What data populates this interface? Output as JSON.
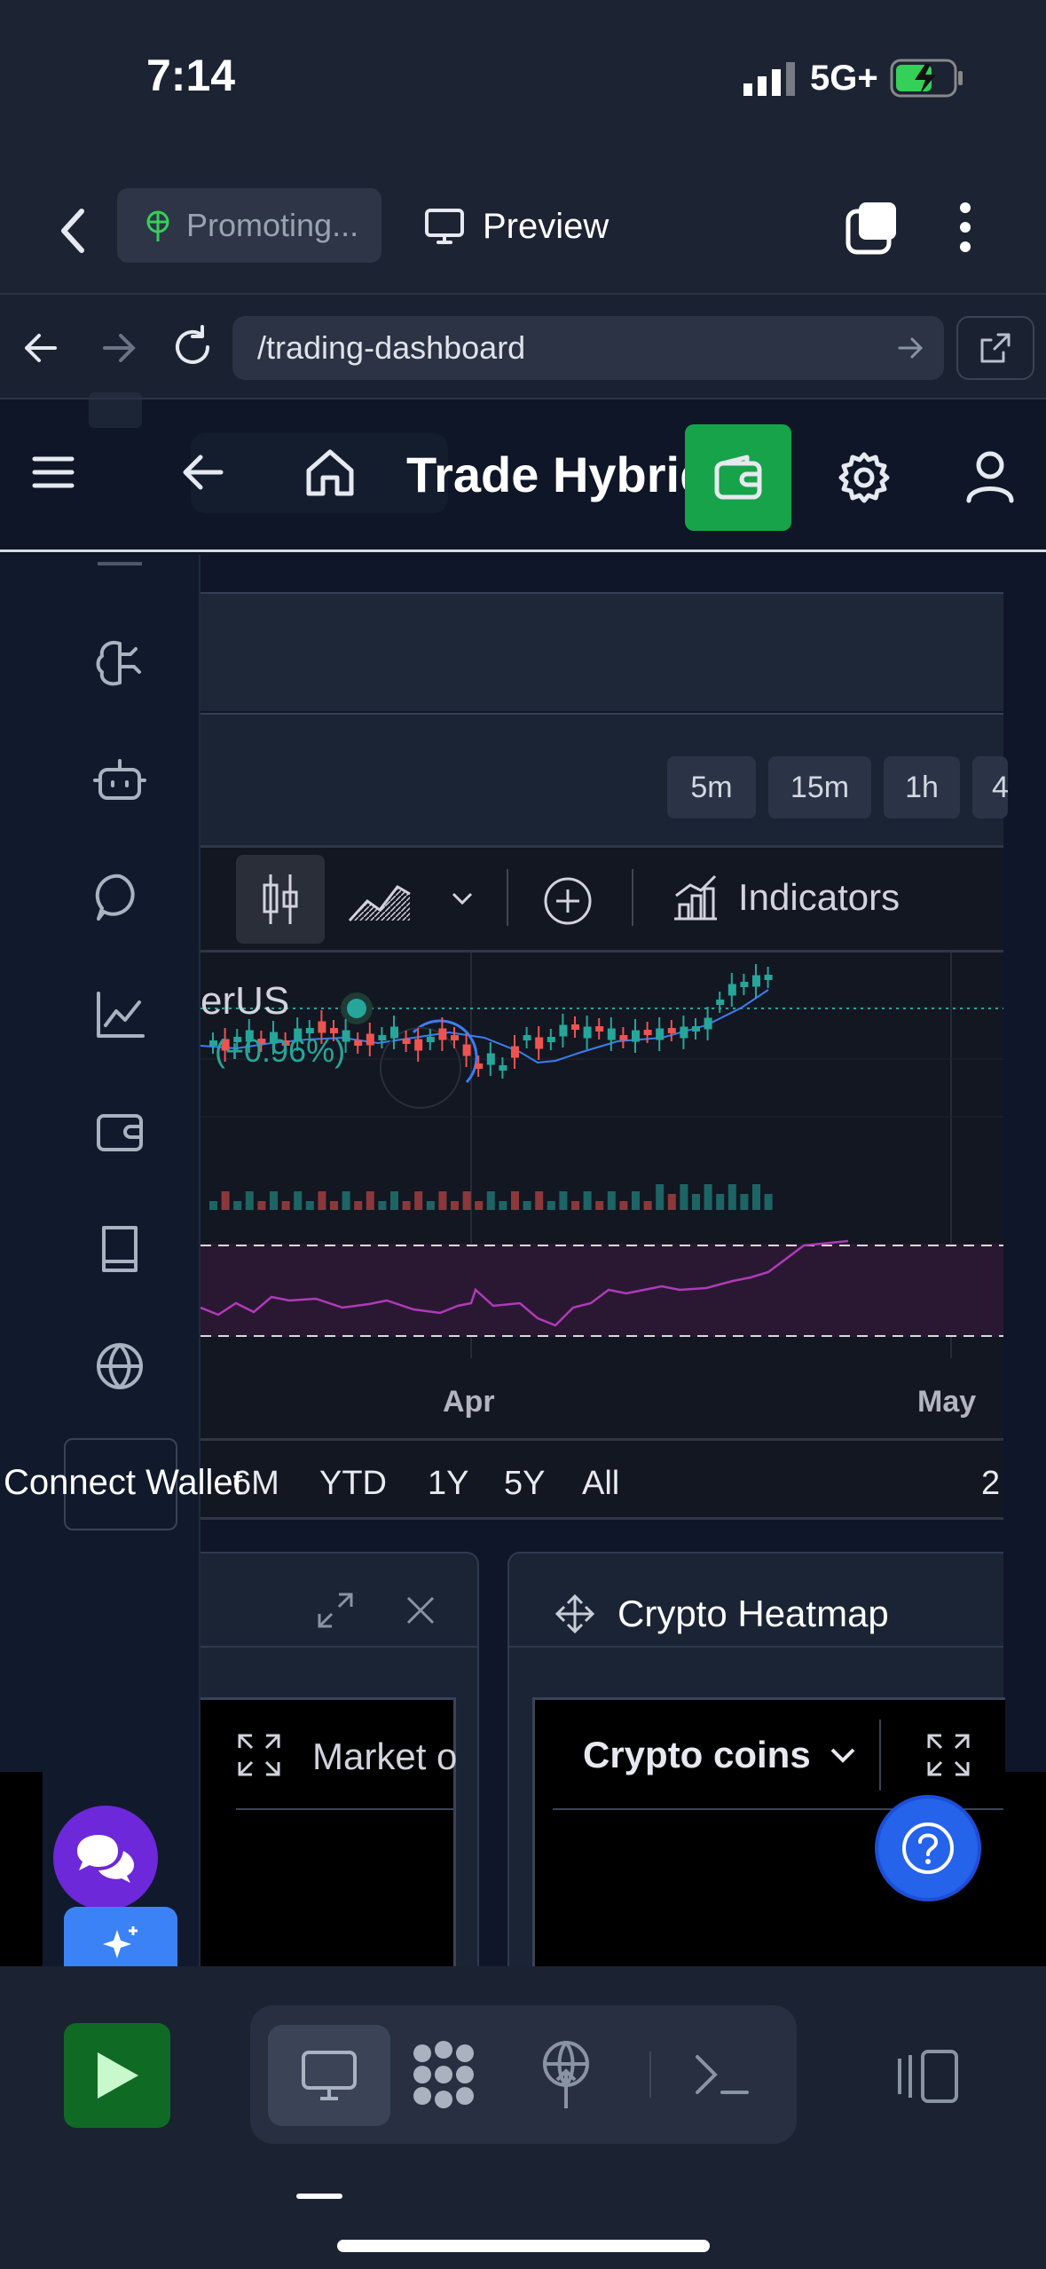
{
  "status": {
    "time": "7:14",
    "network": "5G+"
  },
  "tab_bar": {
    "promoting_label": "Promoting...",
    "preview_label": "Preview"
  },
  "url_bar": {
    "url": "/trading-dashboard"
  },
  "app_header": {
    "title": "Trade Hybrid",
    "wallet_color": "#16a34a"
  },
  "sidebar": {
    "connect_wallet_label": "Connect Wallet"
  },
  "timeframes": [
    "5m",
    "15m",
    "1h",
    "4"
  ],
  "chart_toolbar": {
    "indicators_label": "Indicators"
  },
  "chart": {
    "symbol_fragment": "erUS",
    "change_text": "(+0.96%)",
    "x_labels": [
      "Apr",
      "May"
    ],
    "ranges": [
      "6M",
      "YTD",
      "1Y",
      "5Y",
      "All"
    ],
    "right_fragment": "2"
  },
  "chart_data": {
    "type": "candlestick",
    "x_ticks": [
      "Apr",
      "May"
    ],
    "candle_colors": {
      "up": "#26a69a",
      "down": "#ef5350"
    },
    "indicator_panel": "RSI",
    "change_percent": "+0.96%"
  },
  "panels": {
    "left": {
      "tab_label": "Market o"
    },
    "right": {
      "title": "Crypto Heatmap",
      "dropdown_value": "Crypto coins"
    }
  },
  "colors": {
    "accent_green": "#16a34a",
    "help_blue": "#2563eb",
    "chat_purple": "#6d28d9",
    "play_green": "#15803d"
  }
}
